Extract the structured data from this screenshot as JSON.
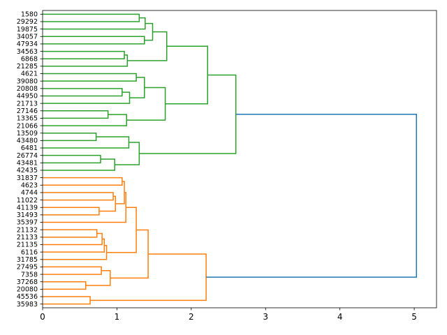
{
  "chart_data": {
    "type": "dendrogram",
    "orientation": "horizontal",
    "title": "",
    "xlabel": "",
    "ylabel": "",
    "xlim": [
      0,
      5.3
    ],
    "xticks": [
      0,
      1,
      2,
      3,
      4,
      5
    ],
    "grid": false,
    "colors": {
      "cluster_a": "#2ca02c",
      "cluster_b": "#ff7f0e",
      "root": "#1f77b4"
    },
    "leaves": [
      "1580",
      "29292",
      "19875",
      "34057",
      "47934",
      "34563",
      "6868",
      "21285",
      "4621",
      "39080",
      "20808",
      "44950",
      "21713",
      "27146",
      "13365",
      "21066",
      "13509",
      "43480",
      "6481",
      "26774",
      "43481",
      "42435",
      "31837",
      "4623",
      "4744",
      "11022",
      "41139",
      "31493",
      "35397",
      "21132",
      "21133",
      "21135",
      "6116",
      "31785",
      "27495",
      "7358",
      "37268",
      "20080",
      "45536",
      "35983"
    ],
    "merges": [
      {
        "a": "1580",
        "b": "29292",
        "height": 1.3,
        "color": "cluster_a"
      },
      {
        "a": "m1",
        "b": "19875",
        "height": 1.38,
        "color": "cluster_a"
      },
      {
        "a": "34057",
        "b": "47934",
        "height": 1.37,
        "color": "cluster_a"
      },
      {
        "a": "m2",
        "b": "m3",
        "height": 1.48,
        "color": "cluster_a"
      },
      {
        "a": "34563",
        "b": "6868",
        "height": 1.1,
        "color": "cluster_a"
      },
      {
        "a": "m5",
        "b": "21285",
        "height": 1.14,
        "color": "cluster_a"
      },
      {
        "a": "m4",
        "b": "m6",
        "height": 1.67,
        "color": "cluster_a"
      },
      {
        "a": "4621",
        "b": "39080",
        "height": 1.26,
        "color": "cluster_a"
      },
      {
        "a": "20808",
        "b": "44950",
        "height": 1.07,
        "color": "cluster_a"
      },
      {
        "a": "m9",
        "b": "21713",
        "height": 1.17,
        "color": "cluster_a"
      },
      {
        "a": "m8",
        "b": "m10",
        "height": 1.37,
        "color": "cluster_a"
      },
      {
        "a": "27146",
        "b": "13365",
        "height": 0.88,
        "color": "cluster_a"
      },
      {
        "a": "m12",
        "b": "21066",
        "height": 1.13,
        "color": "cluster_a"
      },
      {
        "a": "m11",
        "b": "m13",
        "height": 1.65,
        "color": "cluster_a"
      },
      {
        "a": "m7",
        "b": "m14",
        "height": 2.22,
        "color": "cluster_a"
      },
      {
        "a": "13509",
        "b": "43480",
        "height": 0.72,
        "color": "cluster_a"
      },
      {
        "a": "m16",
        "b": "6481",
        "height": 1.16,
        "color": "cluster_a"
      },
      {
        "a": "26774",
        "b": "43481",
        "height": 0.78,
        "color": "cluster_a"
      },
      {
        "a": "m18",
        "b": "42435",
        "height": 0.97,
        "color": "cluster_a"
      },
      {
        "a": "m17",
        "b": "m19",
        "height": 1.3,
        "color": "cluster_a"
      },
      {
        "a": "m15",
        "b": "m20",
        "height": 2.6,
        "color": "cluster_a"
      },
      {
        "a": "31837",
        "b": "4623",
        "height": 1.07,
        "color": "cluster_b"
      },
      {
        "a": "4744",
        "b": "11022",
        "height": 0.95,
        "color": "cluster_b"
      },
      {
        "a": "41139",
        "b": "31493",
        "height": 0.76,
        "color": "cluster_b"
      },
      {
        "a": "m23",
        "b": "m24",
        "height": 0.98,
        "color": "cluster_b"
      },
      {
        "a": "m22",
        "b": "m25",
        "height": 1.1,
        "color": "cluster_b"
      },
      {
        "a": "m26",
        "b": "35397",
        "height": 1.12,
        "color": "cluster_b"
      },
      {
        "a": "21132",
        "b": "21133",
        "height": 0.73,
        "color": "cluster_b"
      },
      {
        "a": "m28",
        "b": "21135",
        "height": 0.8,
        "color": "cluster_b"
      },
      {
        "a": "m29",
        "b": "6116",
        "height": 0.83,
        "color": "cluster_b"
      },
      {
        "a": "m30",
        "b": "31785",
        "height": 0.86,
        "color": "cluster_b"
      },
      {
        "a": "m27",
        "b": "m31",
        "height": 1.26,
        "color": "cluster_b"
      },
      {
        "a": "27495",
        "b": "7358",
        "height": 0.79,
        "color": "cluster_b"
      },
      {
        "a": "37268",
        "b": "20080",
        "height": 0.58,
        "color": "cluster_b"
      },
      {
        "a": "m33",
        "b": "m34",
        "height": 0.91,
        "color": "cluster_b"
      },
      {
        "a": "m32",
        "b": "m35",
        "height": 1.42,
        "color": "cluster_b"
      },
      {
        "a": "45536",
        "b": "35983",
        "height": 0.64,
        "color": "cluster_b"
      },
      {
        "a": "m36",
        "b": "m37",
        "height": 2.2,
        "color": "cluster_b"
      },
      {
        "a": "m21",
        "b": "m38",
        "height": 5.03,
        "color": "root"
      }
    ]
  }
}
